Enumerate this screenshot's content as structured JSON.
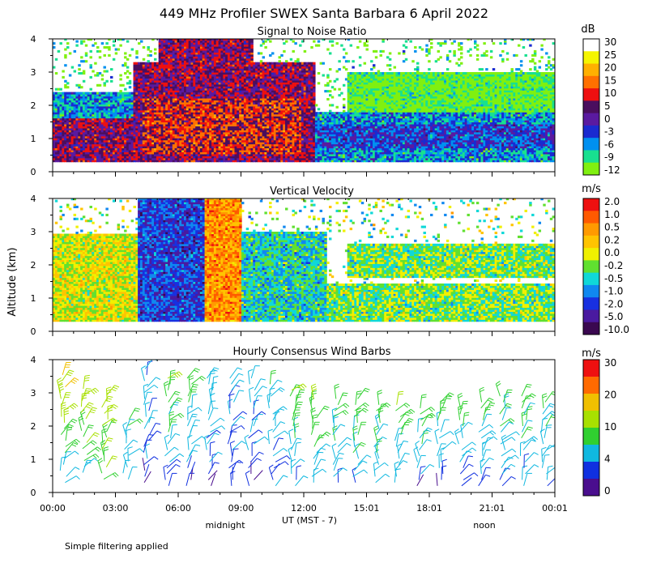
{
  "figure": {
    "title": "449 MHz Profiler SWEX Santa Barbara  6 April 2022",
    "y_axis_label": "Altitude (km)",
    "x_axis_label": "UT  (MST - 7)",
    "midnight_label": "midnight",
    "noon_label": "noon",
    "footnote": "Simple filtering applied",
    "x_ticks": [
      "00:00",
      "03:00",
      "06:00",
      "09:00",
      "12:00",
      "15:01",
      "18:01",
      "21:01",
      "00:01"
    ],
    "y_ticks": [
      "0",
      "1",
      "2",
      "3",
      "4"
    ]
  },
  "chart_data": [
    {
      "type": "heatmap",
      "title": "Signal to Noise Ratio",
      "units": "dB",
      "xlabel": "UT  (MST - 7)",
      "ylabel": "Altitude (km)",
      "xlim_hours": [
        0,
        24
      ],
      "ylim": [
        0,
        4
      ],
      "colorbar": {
        "labels": [
          "30",
          "25",
          "20",
          "15",
          "10",
          "5",
          "0",
          "-3",
          "-6",
          "-9",
          "-12"
        ],
        "colors": [
          "#ffffff",
          "#f5f500",
          "#ffb000",
          "#ff7000",
          "#ee1010",
          "#4a0e5e",
          "#5a1aa0",
          "#1a2ad0",
          "#0090f0",
          "#18e090",
          "#80f010"
        ]
      },
      "zones": [
        {
          "t0": 0.0,
          "t1": 4.0,
          "h0": 0.3,
          "h1": 2.2,
          "level": 5
        },
        {
          "t0": 0.0,
          "t1": 4.0,
          "h0": 1.6,
          "h1": 2.4,
          "level": 8
        },
        {
          "t0": 3.8,
          "t1": 12.5,
          "h0": 0.3,
          "h1": 3.3,
          "level": 5
        },
        {
          "t0": 5.0,
          "t1": 9.5,
          "h0": 3.0,
          "h1": 4.0,
          "level": 5
        },
        {
          "t0": 4.2,
          "t1": 11.8,
          "h0": 0.5,
          "h1": 2.2,
          "level": 4
        },
        {
          "t0": 12.5,
          "t1": 24.0,
          "h0": 0.3,
          "h1": 1.8,
          "level": 8
        },
        {
          "t0": 12.5,
          "t1": 24.0,
          "h0": 0.7,
          "h1": 1.4,
          "level": 7
        },
        {
          "t0": 14.0,
          "t1": 24.0,
          "h0": 1.8,
          "h1": 3.0,
          "level": 10
        }
      ]
    },
    {
      "type": "heatmap",
      "title": "Vertical Velocity",
      "units": "m/s",
      "xlabel": "UT  (MST - 7)",
      "ylabel": "Altitude (km)",
      "xlim_hours": [
        0,
        24
      ],
      "ylim": [
        0,
        4
      ],
      "colorbar": {
        "labels": [
          "2.0",
          "1.0",
          "0.5",
          "0.2",
          "0.0",
          "-0.2",
          "-0.5",
          "-1.0",
          "-2.0",
          "-5.0",
          "-10.0"
        ],
        "colors": [
          "#ee1010",
          "#ff5a00",
          "#ff9a00",
          "#ffc400",
          "#f0f000",
          "#60e030",
          "#10d8d8",
          "#1088f0",
          "#1830e0",
          "#4a1aa0",
          "#3a0850"
        ]
      },
      "zones": [
        {
          "t0": 0.0,
          "t1": 4.0,
          "h0": 0.3,
          "h1": 2.9,
          "level": 4
        },
        {
          "t0": 4.0,
          "t1": 7.2,
          "h0": 0.3,
          "h1": 4.0,
          "level": 8
        },
        {
          "t0": 7.2,
          "t1": 9.0,
          "h0": 0.3,
          "h1": 4.0,
          "level": 2
        },
        {
          "t0": 9.0,
          "t1": 13.0,
          "h0": 0.3,
          "h1": 3.0,
          "level": 6
        },
        {
          "t0": 13.0,
          "t1": 24.0,
          "h0": 0.3,
          "h1": 1.4,
          "level": 5
        },
        {
          "t0": 14.0,
          "t1": 24.0,
          "h0": 1.6,
          "h1": 2.6,
          "level": 5
        }
      ]
    },
    {
      "type": "wind_barbs",
      "title": "Hourly Consensus Wind Barbs",
      "units": "m/s",
      "xlabel": "UT  (MST - 7)",
      "ylabel": "Altitude (km)",
      "xlim_hours": [
        0,
        24
      ],
      "ylim": [
        0,
        4
      ],
      "colorbar": {
        "labels": [
          "30",
          "20",
          "10",
          "4",
          "0"
        ],
        "colors": [
          "#ee1010",
          "#ff6a00",
          "#f0c000",
          "#a8e000",
          "#30d030",
          "#10b8e0",
          "#1030e0",
          "#4a0e8e"
        ]
      },
      "columns": [
        {
          "t": 0.5,
          "h0": 0.3,
          "h1": 3.7,
          "speed_low": 6,
          "speed_high": 18
        },
        {
          "t": 1.5,
          "h0": 0.6,
          "h1": 3.2,
          "speed_low": 8,
          "speed_high": 17
        },
        {
          "t": 2.5,
          "h0": 0.4,
          "h1": 3.0,
          "speed_low": 10,
          "speed_high": 14
        },
        {
          "t": 3.5,
          "h0": 0.4,
          "h1": 2.3,
          "speed_low": 4,
          "speed_high": 8
        },
        {
          "t": 4.5,
          "h0": 0.3,
          "h1": 3.9,
          "speed_low": 2,
          "speed_high": 5
        },
        {
          "t": 5.5,
          "h0": 0.2,
          "h1": 3.6,
          "speed_low": 3,
          "speed_high": 12
        },
        {
          "t": 6.5,
          "h0": 0.2,
          "h1": 3.5,
          "speed_low": 2,
          "speed_high": 10
        },
        {
          "t": 7.5,
          "h0": 0.2,
          "h1": 3.6,
          "speed_low": 2,
          "speed_high": 8
        },
        {
          "t": 8.5,
          "h0": 0.2,
          "h1": 3.6,
          "speed_low": 2,
          "speed_high": 6
        },
        {
          "t": 9.5,
          "h0": 0.2,
          "h1": 3.5,
          "speed_low": 2,
          "speed_high": 6
        },
        {
          "t": 10.5,
          "h0": 0.2,
          "h1": 3.4,
          "speed_low": 3,
          "speed_high": 8
        },
        {
          "t": 11.5,
          "h0": 0.2,
          "h1": 3.2,
          "speed_low": 4,
          "speed_high": 12
        },
        {
          "t": 12.5,
          "h0": 0.3,
          "h1": 3.0,
          "speed_low": 5,
          "speed_high": 12
        },
        {
          "t": 13.5,
          "h0": 0.3,
          "h1": 3.0,
          "speed_low": 5,
          "speed_high": 10
        },
        {
          "t": 14.5,
          "h0": 0.3,
          "h1": 2.9,
          "speed_low": 5,
          "speed_high": 11
        },
        {
          "t": 15.5,
          "h0": 0.3,
          "h1": 2.8,
          "speed_low": 5,
          "speed_high": 11
        },
        {
          "t": 16.5,
          "h0": 0.3,
          "h1": 2.7,
          "speed_low": 5,
          "speed_high": 11
        },
        {
          "t": 17.5,
          "h0": 0.2,
          "h1": 2.6,
          "speed_low": 3,
          "speed_high": 11
        },
        {
          "t": 18.5,
          "h0": 0.2,
          "h1": 2.8,
          "speed_low": 3,
          "speed_high": 10
        },
        {
          "t": 19.5,
          "h0": 0.2,
          "h1": 2.6,
          "speed_low": 3,
          "speed_high": 10
        },
        {
          "t": 20.5,
          "h0": 0.2,
          "h1": 2.8,
          "speed_low": 3,
          "speed_high": 10
        },
        {
          "t": 21.5,
          "h0": 0.2,
          "h1": 3.0,
          "speed_low": 4,
          "speed_high": 10
        },
        {
          "t": 22.5,
          "h0": 0.2,
          "h1": 3.0,
          "speed_low": 4,
          "speed_high": 10
        },
        {
          "t": 23.5,
          "h0": 0.2,
          "h1": 2.8,
          "speed_low": 4,
          "speed_high": 10
        }
      ]
    }
  ]
}
